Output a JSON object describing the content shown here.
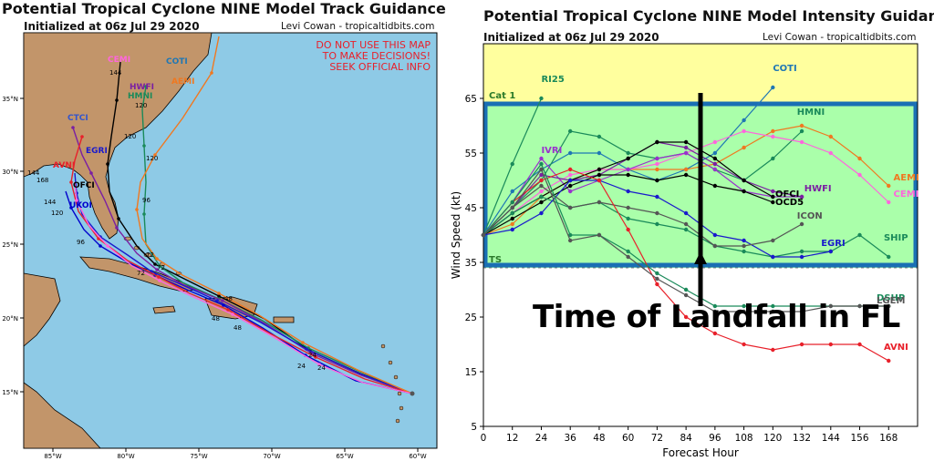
{
  "track_panel": {
    "title": "Potential Tropical Cyclone NINE Model Track Guidance",
    "subtitle": "Initialized at 06z Jul 29 2020",
    "credit": "Levi Cowan - tropicaltidbits.com",
    "warning": [
      "DO NOT USE THIS MAP",
      "TO MAKE DECISIONS!",
      "SEEK OFFICIAL INFO"
    ],
    "lat_labels": [
      "35°N",
      "30°N",
      "25°N",
      "20°N",
      "15°N"
    ],
    "lon_labels": [
      "85°W",
      "80°W",
      "75°W",
      "70°W",
      "65°W",
      "60°W"
    ],
    "colors": {
      "ocean": "#8ecae6",
      "land": "#c2956a"
    },
    "models": [
      {
        "name": "CEMI",
        "color": "#ff66dd"
      },
      {
        "name": "HWFI",
        "color": "#7b1fa2"
      },
      {
        "name": "HMNI",
        "color": "#1a8a5a"
      },
      {
        "name": "CTCI",
        "color": "#3355cc"
      },
      {
        "name": "EGRI",
        "color": "#1a1acc"
      },
      {
        "name": "AVNI",
        "color": "#e8202a"
      },
      {
        "name": "OFCI",
        "color": "#000000"
      },
      {
        "name": "UKOI",
        "color": "#0000cc"
      },
      {
        "name": "AEMI",
        "color": "#f07820"
      },
      {
        "name": "COTI",
        "color": "#1f77b4"
      }
    ],
    "hour_labels": [
      "144",
      "120",
      "120",
      "120",
      "96",
      "96",
      "72",
      "72",
      "72",
      "48",
      "48",
      "48",
      "24",
      "24",
      "24",
      "144",
      "168",
      "144",
      "120"
    ]
  },
  "chart_data": {
    "type": "line",
    "title": "Potential Tropical Cyclone NINE Model Intensity Guidance",
    "subtitle": "Initialized at 06z Jul 29 2020",
    "credit": "Levi Cowan - tropicaltidbits.com",
    "xlabel": "Forecast Hour",
    "ylabel": "Wind Speed (kt)",
    "xlim": [
      0,
      180
    ],
    "ylim": [
      5,
      75
    ],
    "x_ticks": [
      0,
      12,
      24,
      36,
      48,
      60,
      72,
      84,
      96,
      108,
      120,
      132,
      144,
      156,
      168
    ],
    "y_ticks": [
      5,
      15,
      25,
      35,
      45,
      55,
      65
    ],
    "bands": [
      {
        "label": "Cat 1",
        "from": 64,
        "to": 75,
        "color": "#ffff9e"
      },
      {
        "label": "TS",
        "from": 34,
        "to": 64,
        "color": "#aaffaa"
      }
    ],
    "series": [
      {
        "name": "RI25",
        "color": "#1a8a5a",
        "x": [
          0,
          12,
          24
        ],
        "y": [
          40,
          53,
          65
        ]
      },
      {
        "name": "COTI",
        "color": "#1f77b4",
        "x": [
          0,
          12,
          24,
          36,
          48,
          60,
          72,
          84,
          96,
          108,
          120
        ],
        "y": [
          40,
          48,
          52,
          55,
          55,
          52,
          50,
          52,
          55,
          61,
          67
        ]
      },
      {
        "name": "HMNI",
        "color": "#1a8a5a",
        "x": [
          0,
          12,
          24,
          36,
          48,
          60,
          72,
          84,
          96,
          108,
          120,
          132
        ],
        "y": [
          40,
          45,
          50,
          59,
          58,
          55,
          54,
          55,
          52,
          50,
          54,
          59
        ]
      },
      {
        "name": "AEMI",
        "color": "#f07820",
        "x": [
          0,
          12,
          24,
          36,
          48,
          60,
          72,
          84,
          96,
          108,
          120,
          132,
          144,
          156,
          168
        ],
        "y": [
          40,
          42,
          47,
          50,
          52,
          52,
          52,
          52,
          53,
          56,
          59,
          60,
          58,
          54,
          49
        ]
      },
      {
        "name": "CEMI",
        "color": "#ff66dd",
        "x": [
          0,
          12,
          24,
          36,
          48,
          60,
          72,
          84,
          96,
          108,
          120,
          132,
          144,
          156,
          168
        ],
        "y": [
          40,
          44,
          48,
          51,
          52,
          52,
          53,
          55,
          57,
          59,
          58,
          57,
          55,
          51,
          46
        ]
      },
      {
        "name": "IVRI",
        "color": "#9933cc",
        "x": [
          0,
          12,
          24,
          36,
          48,
          60,
          72,
          84,
          96,
          108,
          120,
          132
        ],
        "y": [
          40,
          46,
          54,
          48,
          50,
          52,
          54,
          55,
          52,
          48,
          47,
          47
        ]
      },
      {
        "name": "HWFI",
        "color": "#7b1fa2",
        "x": [
          0,
          12,
          24,
          36,
          48,
          60,
          72,
          84,
          96,
          108,
          120,
          132
        ],
        "y": [
          40,
          45,
          51,
          50,
          51,
          54,
          57,
          56,
          53,
          50,
          48,
          47
        ]
      },
      {
        "name": "OFCI",
        "color": "#000000",
        "x": [
          0,
          12,
          24,
          36,
          48,
          60,
          72,
          84,
          96,
          108,
          120
        ],
        "y": [
          40,
          44,
          47,
          50,
          52,
          54,
          57,
          57,
          54,
          50,
          47
        ]
      },
      {
        "name": "OCD5",
        "color": "#000000",
        "x": [
          0,
          12,
          24,
          36,
          48,
          60,
          72,
          84,
          96,
          108,
          120
        ],
        "y": [
          40,
          43,
          46,
          49,
          51,
          51,
          50,
          51,
          49,
          48,
          46
        ]
      },
      {
        "name": "SHIP",
        "color": "#1a8a5a",
        "x": [
          0,
          12,
          24,
          36,
          48,
          60,
          72,
          84,
          96,
          108,
          120,
          132,
          144,
          156,
          168
        ],
        "y": [
          40,
          44,
          47,
          45,
          46,
          43,
          42,
          41,
          38,
          37,
          36,
          37,
          37,
          40,
          36
        ]
      },
      {
        "name": "EGRI",
        "color": "#1a1acc",
        "x": [
          0,
          12,
          24,
          36,
          48,
          60,
          72,
          84,
          96,
          108,
          120,
          132,
          144
        ],
        "y": [
          40,
          41,
          44,
          50,
          50,
          48,
          47,
          44,
          40,
          39,
          36,
          36,
          37
        ]
      },
      {
        "name": "ICON",
        "color": "#555555",
        "x": [
          0,
          12,
          24,
          36,
          48,
          60,
          72,
          84,
          96,
          108,
          120,
          132
        ],
        "y": [
          40,
          45,
          49,
          45,
          46,
          45,
          44,
          42,
          38,
          38,
          39,
          42
        ]
      },
      {
        "name": "AVNI",
        "color": "#e8202a",
        "x": [
          0,
          12,
          24,
          36,
          48,
          60,
          72,
          84,
          96,
          108,
          120,
          132,
          144,
          156,
          168
        ],
        "y": [
          40,
          46,
          50,
          52,
          50,
          41,
          31,
          25,
          22,
          20,
          19,
          20,
          20,
          20,
          17
        ]
      },
      {
        "name": "DSHP",
        "color": "#1a8a5a",
        "x": [
          0,
          12,
          24,
          36,
          48,
          60,
          72,
          84,
          96,
          108,
          120,
          132,
          144,
          156,
          168
        ],
        "y": [
          40,
          46,
          53,
          40,
          40,
          37,
          33,
          30,
          27,
          27,
          27,
          27,
          27,
          27,
          27
        ]
      },
      {
        "name": "LGEM",
        "color": "#555555",
        "x": [
          0,
          12,
          24,
          36,
          48,
          60,
          72,
          84,
          96,
          108,
          120,
          132,
          144,
          156,
          168
        ],
        "y": [
          40,
          45,
          52,
          39,
          40,
          36,
          32,
          29,
          26,
          26,
          26,
          26,
          27,
          27,
          27
        ]
      }
    ],
    "end_labels": [
      {
        "text": "RI25",
        "color": "#1a8a5a",
        "x": 24,
        "y": 68
      },
      {
        "text": "COTI",
        "color": "#1f77b4",
        "x": 120,
        "y": 70
      },
      {
        "text": "HMNI",
        "color": "#1a8a5a",
        "x": 130,
        "y": 62
      },
      {
        "text": "IVRI",
        "color": "#9933cc",
        "x": 24,
        "y": 55
      },
      {
        "text": "AEMI",
        "color": "#f07820",
        "x": 170,
        "y": 50
      },
      {
        "text": "CEMI",
        "color": "#ff66dd",
        "x": 170,
        "y": 47
      },
      {
        "text": "HWFI",
        "color": "#7b1fa2",
        "x": 133,
        "y": 48
      },
      {
        "text": "OFCI",
        "color": "#000000",
        "x": 121,
        "y": 47
      },
      {
        "text": "OCD5",
        "color": "#000000",
        "x": 121,
        "y": 45.5
      },
      {
        "text": "ICON",
        "color": "#555555",
        "x": 130,
        "y": 43
      },
      {
        "text": "EGRI",
        "color": "#1a1acc",
        "x": 140,
        "y": 38
      },
      {
        "text": "SHIP",
        "color": "#1a8a5a",
        "x": 166,
        "y": 39
      },
      {
        "text": "DSHP",
        "color": "#1a8a5a",
        "x": 163,
        "y": 28
      },
      {
        "text": "LGEM",
        "color": "#555555",
        "x": 163,
        "y": 27.5
      },
      {
        "text": "AVNI",
        "color": "#e8202a",
        "x": 166,
        "y": 19
      }
    ],
    "annotation": {
      "text": "Time of Landfall in FL",
      "x": 90,
      "arrow_from_y": 27,
      "arrow_to_y": 66,
      "box_from_y": 34.5,
      "box_to_y": 64,
      "box_color": "#1a6fb4"
    }
  }
}
